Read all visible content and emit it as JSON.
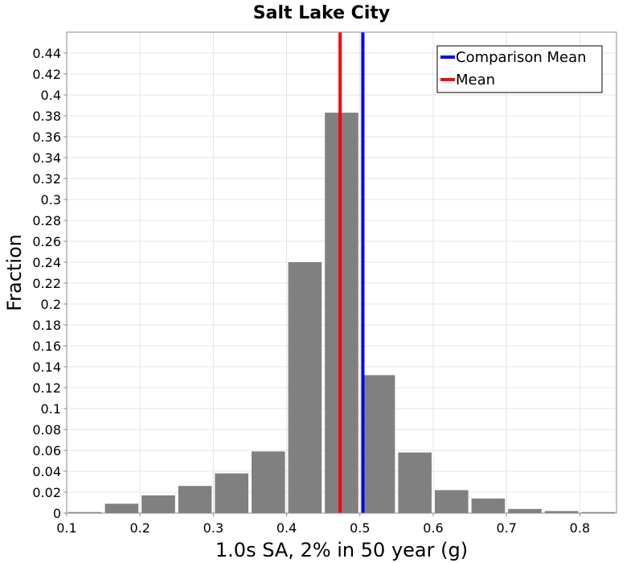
{
  "chart_data": {
    "type": "bar",
    "title": "Salt Lake City",
    "xlabel": "1.0s SA, 2% in 50 year (g)",
    "ylabel": "Fraction",
    "xlim": [
      0.1,
      0.85
    ],
    "ylim": [
      0,
      0.46
    ],
    "grid": true,
    "legend_position": "top-right",
    "bin_width": 0.05,
    "bins": [
      {
        "center": 0.125,
        "value": 0.001
      },
      {
        "center": 0.175,
        "value": 0.009
      },
      {
        "center": 0.225,
        "value": 0.017
      },
      {
        "center": 0.275,
        "value": 0.026
      },
      {
        "center": 0.325,
        "value": 0.038
      },
      {
        "center": 0.375,
        "value": 0.059
      },
      {
        "center": 0.425,
        "value": 0.24
      },
      {
        "center": 0.475,
        "value": 0.383
      },
      {
        "center": 0.525,
        "value": 0.132
      },
      {
        "center": 0.575,
        "value": 0.058
      },
      {
        "center": 0.625,
        "value": 0.022
      },
      {
        "center": 0.675,
        "value": 0.014
      },
      {
        "center": 0.725,
        "value": 0.004
      },
      {
        "center": 0.775,
        "value": 0.002
      },
      {
        "center": 0.825,
        "value": 0.001
      }
    ],
    "x_ticks": [
      "0.1",
      "0.2",
      "0.3",
      "0.4",
      "0.5",
      "0.6",
      "0.7",
      "0.8"
    ],
    "y_ticks": [
      "0",
      "0.02",
      "0.04",
      "0.06",
      "0.08",
      "0.1",
      "0.12",
      "0.14",
      "0.16",
      "0.18",
      "0.2",
      "0.22",
      "0.24",
      "0.26",
      "0.28",
      "0.3",
      "0.32",
      "0.34",
      "0.36",
      "0.38",
      "0.4",
      "0.42",
      "0.44"
    ],
    "lines": [
      {
        "name": "Comparison Mean",
        "x": 0.504,
        "color": "#0000ff"
      },
      {
        "name": "Mean",
        "x": 0.473,
        "color": "#ff0000"
      }
    ],
    "bar_color": "#808080"
  }
}
